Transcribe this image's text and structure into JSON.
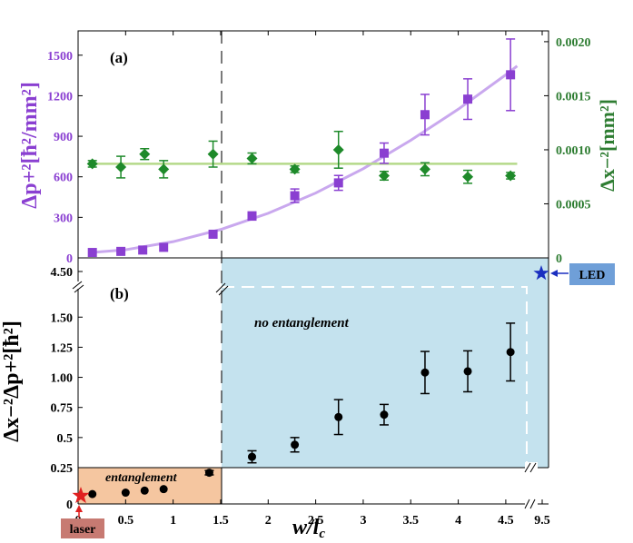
{
  "chart_data": [
    {
      "panel": "(a)",
      "type": "scatter",
      "xlabel": "w/l",
      "xlabel_sub": "c",
      "ylabel_left": "Δp+²[ħ²/mm²]",
      "ylabel_right": "Δx−²[mm²]",
      "left_axis": {
        "ylim": [
          0,
          1680
        ],
        "ticks": [
          "0",
          "300",
          "600",
          "900",
          "1200",
          "1500"
        ],
        "color": "#8a3fd1"
      },
      "right_axis": {
        "ylim": [
          0,
          0.0021
        ],
        "ticks": [
          "0",
          "0.0005",
          "0.0010",
          "0.0015",
          "0.0020"
        ],
        "color": "#2e7d32"
      },
      "xlim": [
        0,
        4.95
      ],
      "series": [
        {
          "name": "Δp+² (squares, left axis)",
          "marker": "square",
          "color": "#8a3fd1",
          "x": [
            0.15,
            0.45,
            0.68,
            0.9,
            1.42,
            1.83,
            2.28,
            2.74,
            3.22,
            3.65,
            4.1,
            4.55
          ],
          "y": [
            40,
            48,
            58,
            78,
            175,
            310,
            460,
            555,
            775,
            1060,
            1175,
            1355
          ],
          "err": [
            0,
            0,
            0,
            0,
            0,
            30,
            50,
            55,
            75,
            150,
            150,
            265
          ]
        },
        {
          "name": "Δx−² (diamonds, right axis)",
          "marker": "diamond",
          "color": "#1e8a2a",
          "x": [
            0.15,
            0.45,
            0.7,
            0.9,
            1.42,
            1.83,
            2.28,
            2.74,
            3.22,
            3.65,
            4.1,
            4.55
          ],
          "y": [
            0.00087,
            0.00084,
            0.00096,
            0.00082,
            0.00096,
            0.00092,
            0.00082,
            0.001,
            0.00076,
            0.00082,
            0.00075,
            0.00076
          ],
          "err": [
            3e-05,
            0.0001,
            5e-05,
            8e-05,
            0.00012,
            5e-05,
            3e-05,
            0.00017,
            4e-05,
            6e-05,
            6e-05,
            3e-05
          ]
        },
        {
          "name": "quadratic fit (left axis)",
          "type": "line",
          "color": "#c9a8ee",
          "x": [
            0.15,
            0.5,
            1.0,
            1.5,
            2.0,
            2.5,
            3.0,
            3.5,
            4.0,
            4.5,
            4.62
          ],
          "y": [
            40,
            60,
            120,
            210,
            330,
            480,
            660,
            870,
            1100,
            1355,
            1420
          ]
        },
        {
          "name": "constant fit (right axis)",
          "type": "line",
          "color": "#b5d98a",
          "x": [
            0.15,
            4.62
          ],
          "y": [
            0.00087,
            0.00087
          ]
        }
      ],
      "vline_x": 1.5
    },
    {
      "panel": "(b)",
      "type": "scatter",
      "ylabel": "Δx−²Δp+²[ħ²]",
      "xlim": [
        0,
        4.95
      ],
      "x_ticks": [
        "0",
        "0.5",
        "1",
        "1.5",
        "2",
        "2.5",
        "3",
        "3.5",
        "4",
        "4.5",
        "9.5"
      ],
      "y_ticks": [
        "0",
        "0.25",
        "0.5",
        "0.75",
        "1.00",
        "1.25",
        "1.50",
        "4.50"
      ],
      "ylim_lower": [
        0,
        0.25
      ],
      "ylim_upper": [
        0.25,
        1.6
      ],
      "series": [
        {
          "name": "Δx−²Δp+²",
          "marker": "circle",
          "color": "#000000",
          "x": [
            0.15,
            0.5,
            0.7,
            0.9,
            1.38,
            1.83,
            2.28,
            2.74,
            3.22,
            3.65,
            4.1,
            4.55
          ],
          "y": [
            0.068,
            0.078,
            0.092,
            0.102,
            0.215,
            0.34,
            0.44,
            0.67,
            0.69,
            1.04,
            1.05,
            1.21
          ],
          "err": [
            0,
            0,
            0,
            0,
            0.015,
            0.05,
            0.06,
            0.145,
            0.085,
            0.175,
            0.17,
            0.24
          ]
        }
      ],
      "regions": [
        {
          "label": "entanglement",
          "color": "#f5c6a0"
        },
        {
          "label": "no entanglement",
          "color": "#c4e2ee"
        }
      ],
      "annotations": {
        "laser": {
          "label": "laser",
          "x": 0,
          "y": 0,
          "color": "#e02020"
        },
        "led": {
          "label": "LED",
          "x": 9.5,
          "y": 4.5,
          "color": "#1a2fc0"
        }
      },
      "boundary_x": 1.5,
      "led_dashed_x": 4.72
    }
  ]
}
